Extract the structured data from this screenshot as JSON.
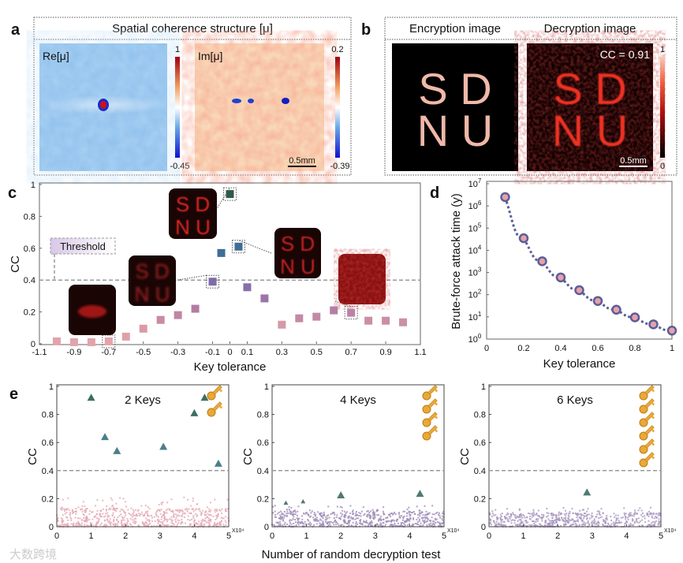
{
  "panel_labels": {
    "a": "a",
    "b": "b",
    "c": "c",
    "d": "d",
    "e": "e"
  },
  "panel_a": {
    "title": "Spatial coherence structure [μ]",
    "re_label": "Re[μ]",
    "im_label": "Im[μ]",
    "re_colorbar": {
      "max": "1",
      "min": "-0.45"
    },
    "im_colorbar": {
      "max": "0.2",
      "min": "-0.39"
    },
    "scalebar": "0.5mm"
  },
  "panel_b": {
    "enc_title": "Encryption image",
    "dec_title": "Decryption image",
    "cc_label": "CC = 0.91",
    "colorbar": {
      "max": "1",
      "min": "0"
    },
    "scalebar": "0.5mm",
    "image_text": [
      "S D",
      "N U"
    ]
  },
  "chart_data": [
    {
      "id": "c",
      "type": "scatter",
      "xlabel": "Key tolerance",
      "ylabel": "CC",
      "xlim": [
        -1.1,
        1.1
      ],
      "ylim": [
        0,
        1
      ],
      "xticks": [
        "-1.1",
        "-0.9",
        "-0.7",
        "-0.5",
        "-0.3",
        "-0.1",
        "0",
        "0.1",
        "0.3",
        "0.5",
        "0.7",
        "0.9",
        "1.1"
      ],
      "yticks": [
        "0",
        "0.2",
        "0.4",
        "0.6",
        "0.8",
        "1"
      ],
      "threshold": 0.4,
      "threshold_label": "Threshold",
      "points": [
        {
          "x": -1.0,
          "y": 0.015,
          "color": "#e3a3ab"
        },
        {
          "x": -0.9,
          "y": 0.01,
          "color": "#e3a3ab"
        },
        {
          "x": -0.8,
          "y": 0.01,
          "color": "#e3a3ab"
        },
        {
          "x": -0.7,
          "y": 0.015,
          "color": "#e3a3ab",
          "highlight": true
        },
        {
          "x": -0.6,
          "y": 0.045,
          "color": "#e0a0a8"
        },
        {
          "x": -0.5,
          "y": 0.095,
          "color": "#da9aa6"
        },
        {
          "x": -0.4,
          "y": 0.15,
          "color": "#c98aa3"
        },
        {
          "x": -0.3,
          "y": 0.18,
          "color": "#bf85a3"
        },
        {
          "x": -0.2,
          "y": 0.22,
          "color": "#b27ca2"
        },
        {
          "x": -0.1,
          "y": 0.39,
          "color": "#7e6ba8",
          "highlight": true
        },
        {
          "x": -0.05,
          "y": 0.57,
          "color": "#3f6d95"
        },
        {
          "x": 0,
          "y": 0.94,
          "color": "#2e5a48",
          "highlight": true
        },
        {
          "x": 0.05,
          "y": 0.61,
          "color": "#3f6d95",
          "highlight": true
        },
        {
          "x": 0.1,
          "y": 0.355,
          "color": "#8570aa"
        },
        {
          "x": 0.2,
          "y": 0.285,
          "color": "#9a76a8"
        },
        {
          "x": 0.3,
          "y": 0.12,
          "color": "#d49aa8"
        },
        {
          "x": 0.4,
          "y": 0.16,
          "color": "#c48aa5"
        },
        {
          "x": 0.5,
          "y": 0.17,
          "color": "#c48aa5"
        },
        {
          "x": 0.6,
          "y": 0.21,
          "color": "#b47ea5"
        },
        {
          "x": 0.7,
          "y": 0.195,
          "color": "#bb82a5",
          "highlight": true
        },
        {
          "x": 0.8,
          "y": 0.145,
          "color": "#ca8ea6"
        },
        {
          "x": 0.9,
          "y": 0.145,
          "color": "#ca8ea6"
        },
        {
          "x": 1.0,
          "y": 0.135,
          "color": "#cc90a6"
        }
      ],
      "inset_text": [
        "S D",
        "N U"
      ]
    },
    {
      "id": "d",
      "type": "line",
      "xlabel": "Key tolerance",
      "ylabel": "Brute-force attack time (y)",
      "xlim": [
        0,
        1
      ],
      "yscale": "log",
      "ylim": [
        1,
        10000000
      ],
      "xticks": [
        "0",
        "0.2",
        "0.4",
        "0.6",
        "0.8",
        "1"
      ],
      "yticks_exp": [
        "0",
        "1",
        "2",
        "3",
        "4",
        "5",
        "6",
        "7"
      ],
      "x": [
        0.1,
        0.2,
        0.3,
        0.4,
        0.5,
        0.6,
        0.7,
        0.8,
        0.9,
        1.0
      ],
      "y": [
        2500000,
        35000,
        3200,
        600,
        160,
        52,
        21,
        9.5,
        4.6,
        2.4
      ]
    },
    {
      "id": "e",
      "type": "scatter",
      "xlabel": "Number of random decryption test",
      "ylabel": "CC",
      "x_multiplier": "X10⁴",
      "xlim": [
        0,
        5
      ],
      "ylim": [
        0,
        1
      ],
      "xticks": [
        "0",
        "1",
        "2",
        "3",
        "4",
        "5"
      ],
      "yticks": [
        "0",
        "0.2",
        "0.4",
        "0.6",
        "0.8",
        "1"
      ],
      "threshold": 0.4,
      "subplots": [
        {
          "title": "2 Keys",
          "keys": 2,
          "noise_max": 0.13,
          "noise_tail": 0.22,
          "color": "#e4a8b0",
          "outliers": [
            {
              "x": 1.0,
              "y": 0.92
            },
            {
              "x": 4.3,
              "y": 0.92
            },
            {
              "x": 4.0,
              "y": 0.81
            },
            {
              "x": 1.4,
              "y": 0.64
            },
            {
              "x": 1.75,
              "y": 0.54
            },
            {
              "x": 3.1,
              "y": 0.57
            },
            {
              "x": 4.7,
              "y": 0.45
            }
          ]
        },
        {
          "title": "4 Keys",
          "keys": 4,
          "noise_max": 0.11,
          "noise_tail": 0.15,
          "color": "#9d8bb8",
          "outliers": [
            {
              "x": 2.0,
              "y": 0.225
            },
            {
              "x": 4.3,
              "y": 0.235
            },
            {
              "x": 0.9,
              "y": 0.18
            },
            {
              "x": 0.4,
              "y": 0.17
            }
          ]
        },
        {
          "title": "6 Keys",
          "keys": 6,
          "noise_max": 0.1,
          "noise_tail": 0.14,
          "color": "#a996bf",
          "outliers": [
            {
              "x": 2.85,
              "y": 0.245
            }
          ]
        }
      ]
    }
  ],
  "watermark": "大数跨境"
}
